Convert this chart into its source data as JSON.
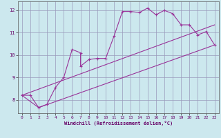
{
  "xlabel": "Windchill (Refroidissement éolien,°C)",
  "bg_color": "#cce8ee",
  "grid_color": "#9999bb",
  "line_color": "#993399",
  "spine_color": "#555555",
  "xlabel_color": "#660066",
  "tick_color": "#333333",
  "xlim": [
    -0.5,
    23.5
  ],
  "ylim": [
    7.4,
    12.4
  ],
  "xticks": [
    0,
    1,
    2,
    3,
    4,
    5,
    6,
    7,
    8,
    9,
    10,
    11,
    12,
    13,
    14,
    15,
    16,
    17,
    18,
    19,
    20,
    21,
    22,
    23
  ],
  "yticks": [
    8,
    9,
    10,
    11,
    12
  ],
  "series1": [
    [
      0,
      8.2
    ],
    [
      1,
      8.2
    ],
    [
      2,
      7.65
    ],
    [
      3,
      7.8
    ],
    [
      4,
      8.55
    ],
    [
      5,
      9.0
    ],
    [
      6,
      10.25
    ],
    [
      7,
      10.1
    ],
    [
      7,
      9.5
    ],
    [
      8,
      9.8
    ],
    [
      9,
      9.85
    ],
    [
      10,
      9.85
    ],
    [
      11,
      10.85
    ],
    [
      12,
      11.95
    ],
    [
      13,
      11.95
    ],
    [
      14,
      11.9
    ],
    [
      15,
      12.1
    ],
    [
      16,
      11.8
    ],
    [
      17,
      12.0
    ],
    [
      18,
      11.85
    ],
    [
      19,
      11.35
    ],
    [
      20,
      11.35
    ],
    [
      21,
      10.9
    ],
    [
      22,
      11.05
    ],
    [
      23,
      10.45
    ]
  ],
  "series2": [
    [
      0,
      8.2
    ],
    [
      2,
      7.65
    ],
    [
      23,
      10.45
    ]
  ],
  "series3": [
    [
      0,
      8.2
    ],
    [
      23,
      11.35
    ]
  ]
}
